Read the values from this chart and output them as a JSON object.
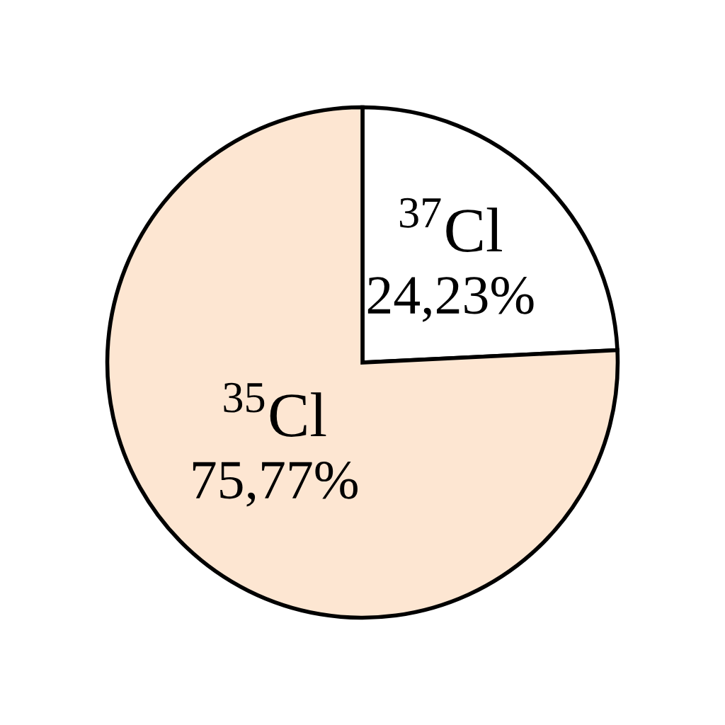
{
  "chart_data": {
    "type": "pie",
    "categories": [
      "$^{37}$Cl",
      "$^{35}$Cl"
    ],
    "values": [
      24.23,
      75.77
    ],
    "colors": [
      "#ffffff",
      "#fde6d2"
    ],
    "value_labels": [
      "24,23%",
      "75,77%"
    ]
  }
}
